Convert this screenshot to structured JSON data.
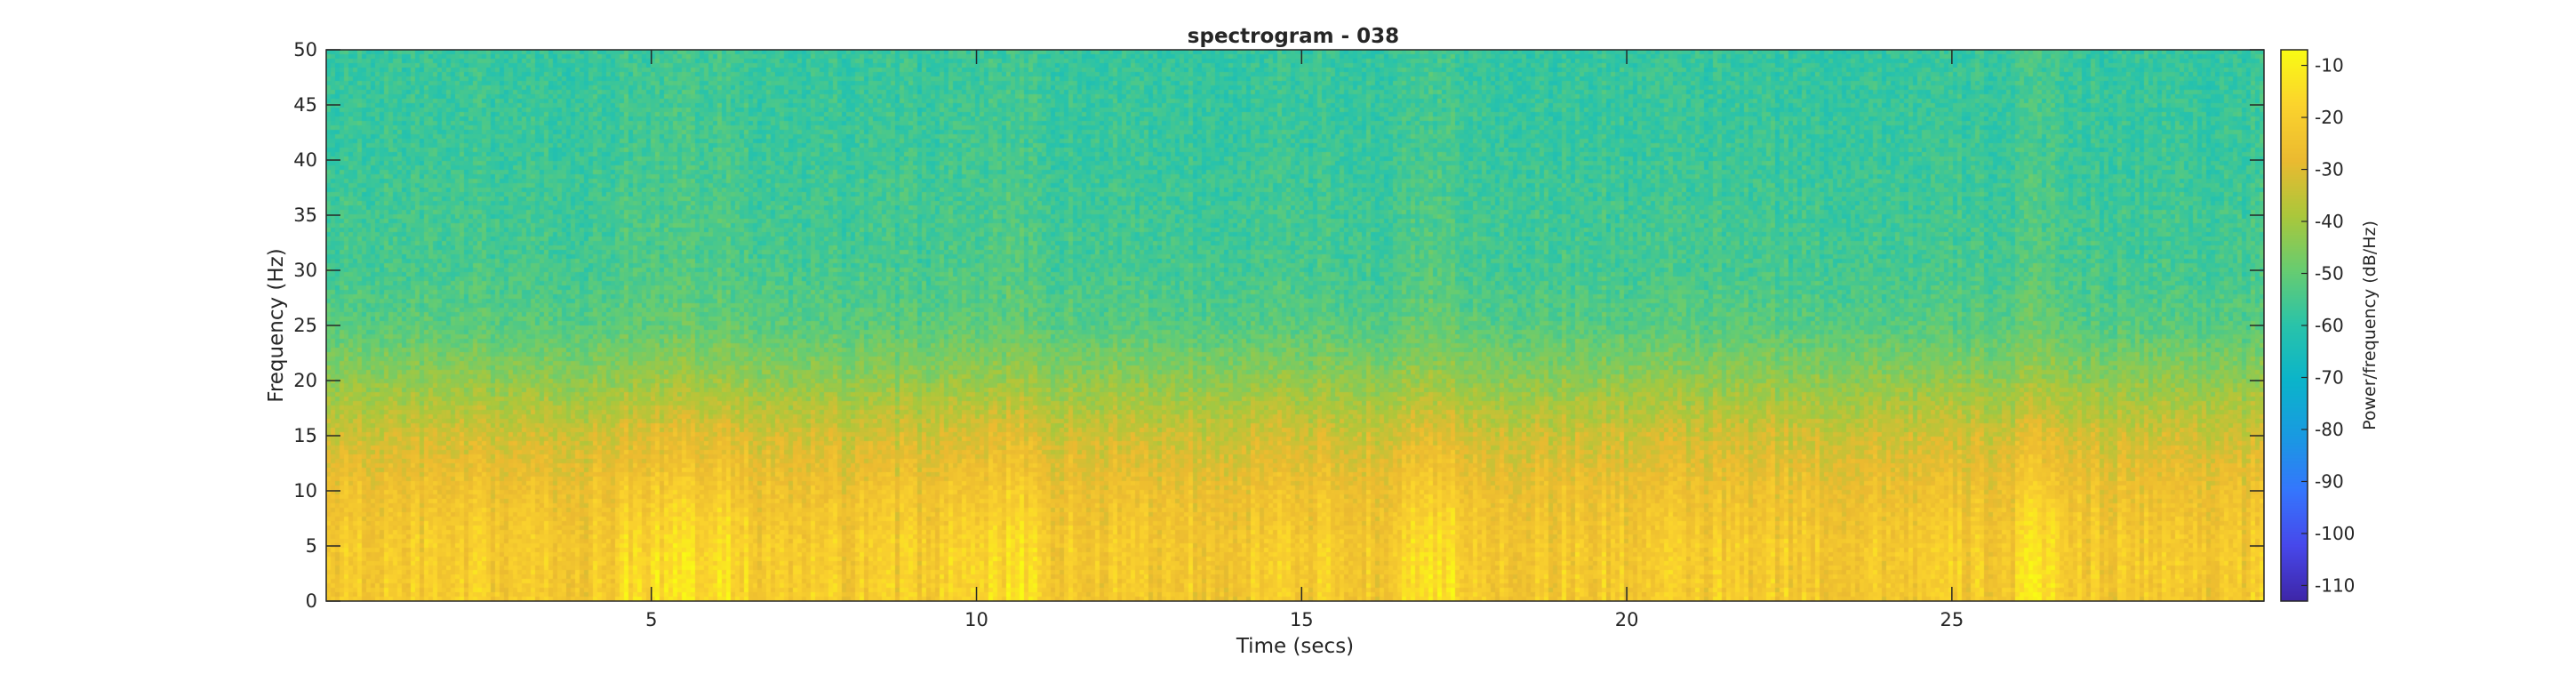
{
  "chart_data": {
    "type": "heatmap",
    "title": "spectrogram - 038",
    "xlabel": "Time (secs)",
    "ylabel": "Frequency (Hz)",
    "xlim": [
      0,
      29.8
    ],
    "ylim": [
      0,
      50
    ],
    "x_ticks": [
      5,
      10,
      15,
      20,
      25
    ],
    "x_tick_labels": [
      "5",
      "10",
      "15",
      "20",
      "25"
    ],
    "y_ticks": [
      0,
      5,
      10,
      15,
      20,
      25,
      30,
      35,
      40,
      45,
      50
    ],
    "y_tick_labels": [
      "0",
      "5",
      "10",
      "15",
      "20",
      "25",
      "30",
      "35",
      "40",
      "45",
      "50"
    ],
    "colorbar": {
      "label": "Power/frequency (dB/Hz)",
      "range": [
        -113,
        -7
      ],
      "ticks": [
        -10,
        -20,
        -30,
        -40,
        -50,
        -60,
        -70,
        -80,
        -90,
        -100,
        -110
      ],
      "tick_labels": [
        "-10",
        "-20",
        "-30",
        "-40",
        "-50",
        "-60",
        "-70",
        "-80",
        "-90",
        "-100",
        "-110"
      ],
      "colormap": "parula"
    },
    "approx_power_profile_db": {
      "frequency_hz": [
        0,
        5,
        10,
        15,
        20,
        25,
        30,
        40,
        50
      ],
      "mean_db": [
        -22,
        -22,
        -26,
        -33,
        -43,
        -52,
        -55,
        -57,
        -58
      ]
    },
    "high_power_intervals_secs": [
      [
        4.5,
        6.5
      ],
      [
        9.5,
        11
      ],
      [
        16.5,
        17.5
      ],
      [
        26,
        26.8
      ]
    ]
  }
}
